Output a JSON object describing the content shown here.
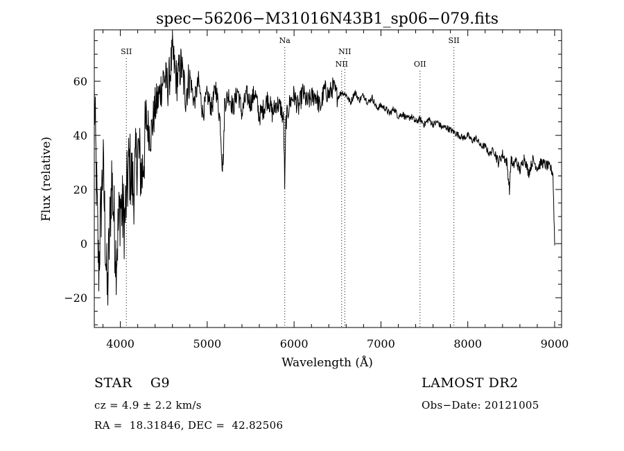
{
  "chart_data": {
    "type": "line",
    "title": "spec−56206−M31016N43B1_sp06−079.fits",
    "xlabel": "Wavelength (Å)",
    "ylabel": "Flux (relative)",
    "xlim": [
      3700,
      9080
    ],
    "ylim": [
      -31,
      79
    ],
    "xticks": [
      4000,
      5000,
      6000,
      7000,
      8000,
      9000
    ],
    "yticks": [
      -20,
      0,
      20,
      40,
      60
    ],
    "ytick_labels": [
      "−20",
      "0",
      "20",
      "40",
      "60"
    ],
    "grid": false,
    "series": [
      {
        "x": [
          3700,
          3750,
          3800,
          3850,
          3900,
          3950,
          4000,
          4050,
          4100,
          4150,
          4200,
          4250,
          4300,
          4350,
          4400,
          4450,
          4500,
          4550,
          4600,
          4650,
          4700,
          4750,
          4800,
          4850,
          4900,
          4950,
          5000,
          5050,
          5100,
          5150,
          5175,
          5190,
          5200,
          5250,
          5300,
          5350,
          5400,
          5450,
          5500,
          5550,
          5600,
          5650,
          5700,
          5750,
          5800,
          5850,
          5880,
          5893,
          5905,
          5950,
          6000,
          6050,
          6100,
          6150,
          6200,
          6250,
          6300,
          6350,
          6400,
          6450,
          6500,
          6550,
          6600,
          6650,
          6700,
          6750,
          6800,
          6850,
          6900,
          6950,
          7000,
          7050,
          7100,
          7150,
          7200,
          7250,
          7300,
          7350,
          7400,
          7450,
          7500,
          7550,
          7600,
          7650,
          7700,
          7750,
          7800,
          7850,
          7900,
          7950,
          8000,
          8050,
          8100,
          8150,
          8200,
          8250,
          8300,
          8350,
          8400,
          8450,
          8480,
          8500,
          8520,
          8550,
          8600,
          8650,
          8700,
          8750,
          8800,
          8850,
          8900,
          8950,
          8980,
          9000
        ],
        "y": [
          55,
          -10,
          30,
          -20,
          25,
          -5,
          15,
          8,
          30,
          20,
          35,
          25,
          45,
          40,
          50,
          55,
          62,
          58,
          70,
          60,
          66,
          55,
          62,
          52,
          60,
          48,
          55,
          50,
          58,
          45,
          28,
          35,
          52,
          55,
          50,
          57,
          48,
          55,
          52,
          56,
          47,
          50,
          54,
          48,
          52,
          50,
          45,
          20,
          45,
          52,
          55,
          50,
          56,
          52,
          54,
          55,
          50,
          57,
          55,
          58,
          54,
          56,
          55,
          52,
          56,
          53,
          55,
          52,
          54,
          50,
          51,
          50,
          48,
          50,
          47,
          48,
          46,
          47,
          45,
          46,
          44,
          46,
          44,
          45,
          43,
          43,
          42,
          41,
          40,
          39,
          40,
          38,
          39,
          36,
          36,
          33,
          35,
          30,
          33,
          30,
          20,
          32,
          28,
          31,
          27,
          32,
          26,
          31,
          28,
          30,
          29,
          28,
          26,
          0
        ]
      }
    ],
    "lines": [
      {
        "label": "SII",
        "x": 4069,
        "row": 1
      },
      {
        "label": "Na",
        "x": 5893,
        "row": 0
      },
      {
        "label": "NII",
        "x": 6548,
        "row": 2
      },
      {
        "label": "NII",
        "x": 6584,
        "row": 1
      },
      {
        "label": "OII",
        "x": 7450,
        "row": 2
      },
      {
        "label": "SII",
        "x": 7840,
        "row": 0
      }
    ]
  },
  "info": {
    "object": "STAR    G9",
    "survey": "LAMOST DR2",
    "velocity": "cz = 4.9 ± 2.2 km/s",
    "obs_date": "Obs−Date: 20121005",
    "coordinates": "RA =  18.31846, DEC =  42.82506"
  }
}
